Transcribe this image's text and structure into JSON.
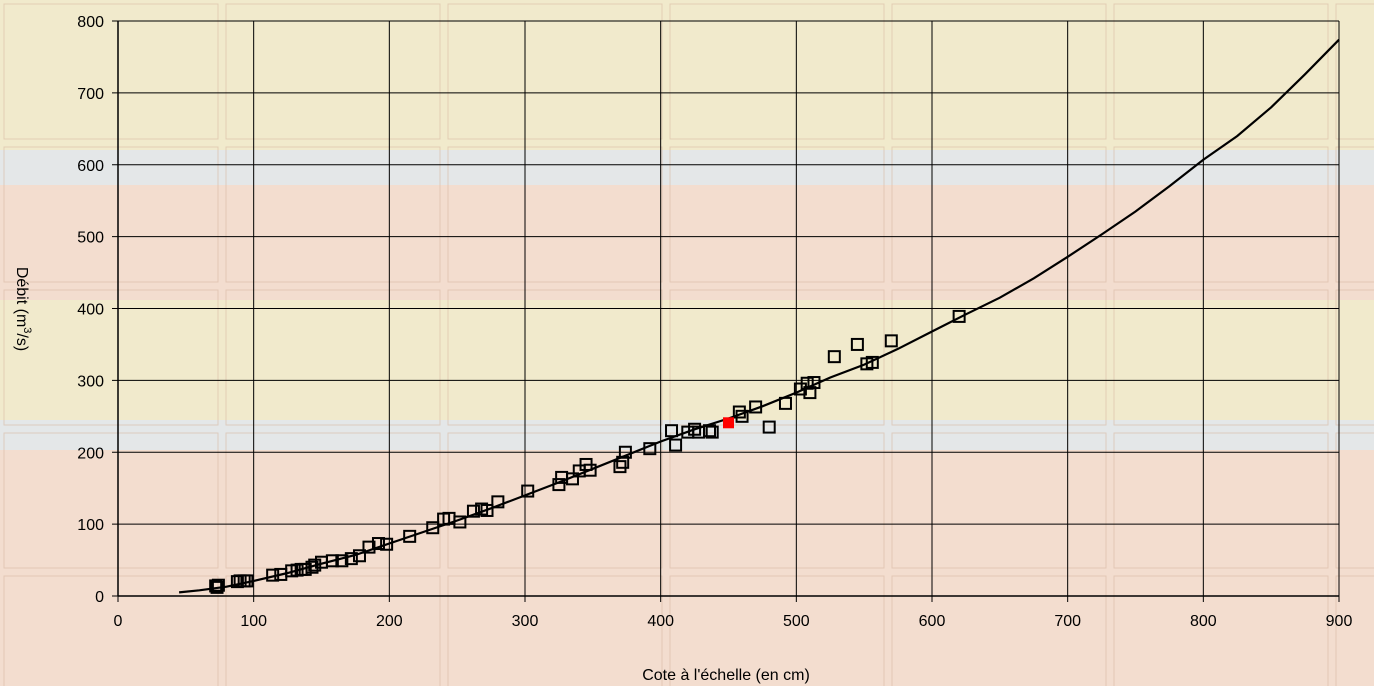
{
  "chart_data": {
    "type": "scatter",
    "xlabel": "Cote à l'échelle (en cm)",
    "ylabel_parts": [
      "Débit (m",
      "3",
      "/s)"
    ],
    "xlim": [
      0,
      900
    ],
    "ylim": [
      0,
      800
    ],
    "x_ticks": [
      0,
      100,
      200,
      300,
      400,
      500,
      600,
      700,
      800,
      900
    ],
    "y_ticks": [
      0,
      100,
      200,
      300,
      400,
      500,
      600,
      700,
      800
    ],
    "grid": true,
    "background_colors": {
      "pink": "#f2d8cc",
      "blue": "#dde6ee",
      "cream": "#efe9c8",
      "pale": "#f5ead8"
    },
    "marker_color": "#000000",
    "highlight_color": "#ff0000",
    "curve_color": "#000000",
    "series": [
      {
        "marker": "open-square",
        "points": [
          [
            72,
            14
          ],
          [
            73,
            12
          ],
          [
            74,
            15
          ],
          [
            88,
            20
          ],
          [
            90,
            21
          ],
          [
            93,
            21
          ],
          [
            95,
            21
          ],
          [
            114,
            29
          ],
          [
            120,
            30
          ],
          [
            128,
            35
          ],
          [
            132,
            36
          ],
          [
            135,
            37
          ],
          [
            138,
            37
          ],
          [
            143,
            40
          ],
          [
            145,
            43
          ],
          [
            150,
            47
          ],
          [
            158,
            49
          ],
          [
            165,
            49
          ],
          [
            172,
            52
          ],
          [
            178,
            56
          ],
          [
            185,
            68
          ],
          [
            192,
            73
          ],
          [
            198,
            72
          ],
          [
            215,
            83
          ],
          [
            232,
            95
          ],
          [
            240,
            107
          ],
          [
            244,
            108
          ],
          [
            252,
            103
          ],
          [
            262,
            118
          ],
          [
            268,
            121
          ],
          [
            272,
            119
          ],
          [
            280,
            131
          ],
          [
            302,
            146
          ],
          [
            325,
            155
          ],
          [
            327,
            165
          ],
          [
            335,
            163
          ],
          [
            340,
            174
          ],
          [
            345,
            183
          ],
          [
            348,
            175
          ],
          [
            370,
            180
          ],
          [
            372,
            186
          ],
          [
            374,
            200
          ],
          [
            392,
            205
          ],
          [
            408,
            230
          ],
          [
            411,
            210
          ],
          [
            420,
            228
          ],
          [
            425,
            232
          ],
          [
            428,
            228
          ],
          [
            436,
            230
          ],
          [
            438,
            228
          ],
          [
            458,
            256
          ],
          [
            460,
            250
          ],
          [
            470,
            263
          ],
          [
            480,
            235
          ],
          [
            492,
            268
          ],
          [
            503,
            288
          ],
          [
            508,
            296
          ],
          [
            510,
            283
          ],
          [
            513,
            297
          ],
          [
            528,
            333
          ],
          [
            545,
            350
          ],
          [
            552,
            323
          ],
          [
            556,
            325
          ],
          [
            570,
            355
          ],
          [
            620,
            389
          ]
        ]
      },
      {
        "marker": "filled-square",
        "points": [
          [
            450,
            241
          ]
        ]
      }
    ],
    "curve": [
      [
        45,
        5
      ],
      [
        60,
        8
      ],
      [
        80,
        13
      ],
      [
        100,
        21
      ],
      [
        125,
        32
      ],
      [
        150,
        45
      ],
      [
        175,
        57
      ],
      [
        200,
        73
      ],
      [
        225,
        89
      ],
      [
        250,
        105
      ],
      [
        275,
        122
      ],
      [
        300,
        140
      ],
      [
        325,
        158
      ],
      [
        350,
        177
      ],
      [
        375,
        196
      ],
      [
        400,
        215
      ],
      [
        425,
        232
      ],
      [
        450,
        247
      ],
      [
        475,
        264
      ],
      [
        500,
        283
      ],
      [
        525,
        304
      ],
      [
        550,
        322
      ],
      [
        575,
        344
      ],
      [
        600,
        368
      ],
      [
        625,
        392
      ],
      [
        650,
        415
      ],
      [
        675,
        442
      ],
      [
        700,
        472
      ],
      [
        725,
        503
      ],
      [
        750,
        535
      ],
      [
        775,
        570
      ],
      [
        800,
        607
      ],
      [
        825,
        640
      ],
      [
        850,
        680
      ],
      [
        875,
        726
      ],
      [
        900,
        774
      ]
    ]
  }
}
